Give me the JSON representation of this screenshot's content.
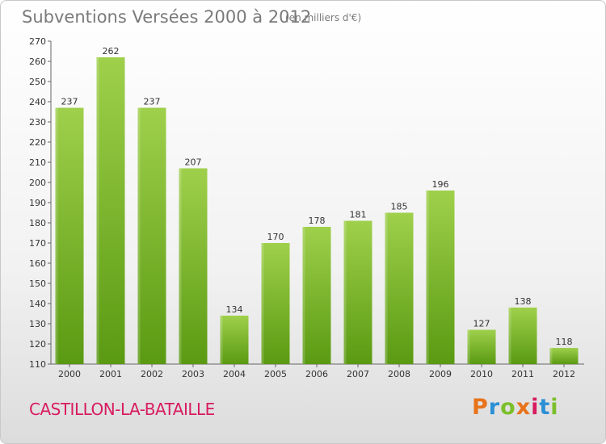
{
  "header": {
    "title": "Subventions Versées 2000 à 2012",
    "subtitle": "(en milliers d'€)"
  },
  "footer": {
    "commune": "CASTILLON-LA-BATAILLE",
    "logo_text": "Proxiti",
    "logo_colors": [
      "#e8731a",
      "#2b8fd6",
      "#7bbf2a",
      "#e8731a",
      "#d81b60",
      "#2b8fd6",
      "#7bbf2a"
    ]
  },
  "colors": {
    "bar_top": "#9fd04c",
    "bar_bottom": "#5a9a12",
    "title": "#7a7a7a",
    "commune": "#d81b60"
  },
  "chart_data": {
    "type": "bar",
    "title": "Subventions Versées 2000 à 2012",
    "subtitle": "(en milliers d'€)",
    "xlabel": "",
    "ylabel": "",
    "categories": [
      "2000",
      "2001",
      "2002",
      "2003",
      "2004",
      "2005",
      "2006",
      "2007",
      "2008",
      "2009",
      "2010",
      "2011",
      "2012"
    ],
    "values": [
      237,
      262,
      237,
      207,
      134,
      170,
      178,
      181,
      185,
      196,
      127,
      138,
      118
    ],
    "ylim": [
      110,
      270
    ],
    "yticks": [
      110,
      120,
      130,
      140,
      150,
      160,
      170,
      180,
      190,
      200,
      210,
      220,
      230,
      240,
      250,
      260,
      270
    ],
    "grid": false,
    "legend": "none"
  }
}
